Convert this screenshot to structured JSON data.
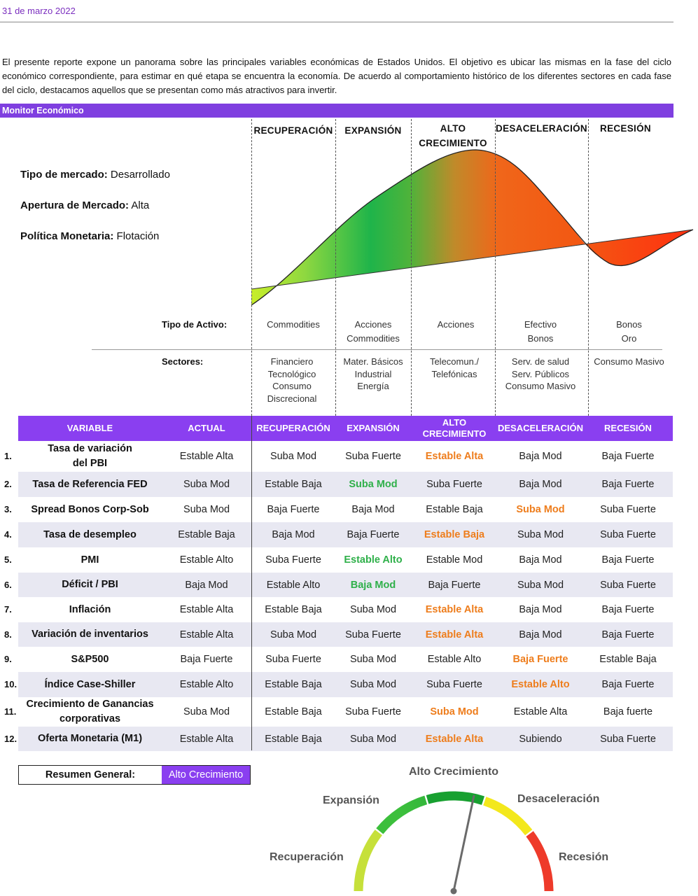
{
  "date": "31 de marzo 2022",
  "intro": "El presente reporte expone un panorama sobre las principales variables económicas de Estados Unidos. El objetivo es ubicar las mismas en la fase del ciclo económico correspondiente, para estimar en qué etapa se encuentra la economía. De acuerdo al comportamiento histórico de los diferentes sectores en cada fase del ciclo, destacamos aquellos que se presentan como más atractivos para invertir.",
  "monitor_title": "Monitor Económico",
  "market_info": [
    {
      "label": "Tipo de mercado:",
      "value": " Desarrollado"
    },
    {
      "label": "Apertura de Mercado:",
      "value": " Alta"
    },
    {
      "label": "Política Monetaria:",
      "value": " Flotación"
    }
  ],
  "phases": {
    "recuperacion": "RECUPERACIÓN",
    "expansion": "EXPANSIÓN",
    "alto_l1": "ALTO",
    "alto_l2": "CRECIMIENTO",
    "desaceleracion": "DESACELERACIÓN",
    "recesion": "RECESIÓN"
  },
  "asset_label": "Tipo de Activo:",
  "assets": {
    "recuperacion": [
      "Commodities"
    ],
    "expansion": [
      "Acciones",
      "Commodities"
    ],
    "alto": [
      "Acciones"
    ],
    "desaceleracion": [
      "Efectivo",
      "Bonos"
    ],
    "recesion": [
      "Bonos",
      "Oro"
    ]
  },
  "sectors_label": "Sectores:",
  "sectors": {
    "recuperacion": [
      "Financiero",
      "Tecnológico",
      "Consumo",
      "Discrecional"
    ],
    "expansion": [
      "Mater. Básicos",
      "Industrial",
      "Energía"
    ],
    "alto": [
      "Telecomun./",
      "Telefónicas"
    ],
    "desaceleracion": [
      "Serv. de salud",
      "Serv. Públicos",
      "Consumo Masivo"
    ],
    "recesion": [
      "Consumo Masivo"
    ]
  },
  "table": {
    "headers": {
      "variable": "VARIABLE",
      "actual": "ACTUAL",
      "recuperacion": "RECUPERACIÓN",
      "expansion": "EXPANSIÓN",
      "alto_l1": "ALTO",
      "alto_l2": "CRECIMIENTO",
      "desaceleracion": "DESACELERACIÓN",
      "recesion": "RECESIÓN"
    },
    "rows": [
      {
        "num": "1.",
        "var": [
          "Tasa de variación",
          "del PBI"
        ],
        "actual": "Estable Alta",
        "rec": "Suba Mod",
        "exp": "Suba Fuerte",
        "alto": "Estable Alta",
        "des": "Baja Mod",
        "res": "Baja Fuerte",
        "hl": "alto",
        "hl_color": "orange"
      },
      {
        "num": "2.",
        "var": [
          "Tasa de Referencia FED"
        ],
        "actual": "Suba Mod",
        "rec": "Estable Baja",
        "exp": "Suba Mod",
        "alto": "Suba Fuerte",
        "des": "Baja Mod",
        "res": "Baja Fuerte",
        "hl": "exp",
        "hl_color": "green"
      },
      {
        "num": "3.",
        "var": [
          "Spread Bonos Corp-Sob"
        ],
        "actual": "Suba Mod",
        "rec": "Baja Fuerte",
        "exp": "Baja Mod",
        "alto": "Estable Baja",
        "des": "Suba Mod",
        "res": "Suba Fuerte",
        "hl": "des",
        "hl_color": "orange"
      },
      {
        "num": "4.",
        "var": [
          "Tasa de desempleo"
        ],
        "actual": "Estable Baja",
        "rec": "Baja Mod",
        "exp": "Baja Fuerte",
        "alto": "Estable Baja",
        "des": "Suba Mod",
        "res": "Suba Fuerte",
        "hl": "alto",
        "hl_color": "orange"
      },
      {
        "num": "5.",
        "var": [
          "PMI"
        ],
        "actual": "Estable Alto",
        "rec": "Suba Fuerte",
        "exp": "Estable Alto",
        "alto": "Estable Mod",
        "des": "Baja Mod",
        "res": "Baja Fuerte",
        "hl": "exp",
        "hl_color": "green"
      },
      {
        "num": "6.",
        "var": [
          "Déficit / PBI"
        ],
        "actual": "Baja Mod",
        "rec": "Estable Alto",
        "exp": "Baja Mod",
        "alto": "Baja Fuerte",
        "des": "Suba Mod",
        "res": "Suba Fuerte",
        "hl": "exp",
        "hl_color": "green"
      },
      {
        "num": "7.",
        "var": [
          "Inflación"
        ],
        "actual": "Estable Alta",
        "rec": "Estable Baja",
        "exp": "Suba Mod",
        "alto": "Estable Alta",
        "des": "Baja Mod",
        "res": "Baja Fuerte",
        "hl": "alto",
        "hl_color": "orange"
      },
      {
        "num": "8.",
        "var": [
          "Variación de inventarios"
        ],
        "actual": "Estable Alta",
        "rec": "Suba Mod",
        "exp": "Suba Fuerte",
        "alto": "Estable Alta",
        "des": "Baja Mod",
        "res": "Baja Fuerte",
        "hl": "alto",
        "hl_color": "orange"
      },
      {
        "num": "9.",
        "var": [
          "S&P500"
        ],
        "actual": "Baja Fuerte",
        "rec": "Suba Fuerte",
        "exp": "Suba Mod",
        "alto": "Estable Alto",
        "des": "Baja Fuerte",
        "res": "Estable Baja",
        "hl": "des",
        "hl_color": "orange"
      },
      {
        "num": "10.",
        "var": [
          "Índice Case-Shiller"
        ],
        "actual": "Estable Alto",
        "rec": "Estable Baja",
        "exp": "Suba Mod",
        "alto": "Suba Fuerte",
        "des": "Estable Alto",
        "res": "Baja Fuerte",
        "hl": "des",
        "hl_color": "orange"
      },
      {
        "num": "11.",
        "var": [
          "Crecimiento de Ganancias",
          "corporativas"
        ],
        "actual": "Suba Mod",
        "rec": "Estable Baja",
        "exp": "Suba Fuerte",
        "alto": "Suba Mod",
        "des": "Estable Alta",
        "res": "Baja fuerte",
        "hl": "alto",
        "hl_color": "orange"
      },
      {
        "num": "12.",
        "var": [
          "Oferta Monetaria (M1)"
        ],
        "actual": "Estable Alta",
        "rec": "Estable Baja",
        "exp": "Suba Mod",
        "alto": "Estable Alta",
        "des": "Subiendo",
        "res": "Suba Fuerte",
        "hl": "alto",
        "hl_color": "orange"
      }
    ]
  },
  "summary": {
    "label": "Resumen General:",
    "value": "Alto Crecimiento"
  },
  "gauge": {
    "labels": {
      "top": "Alto Crecimiento",
      "expansion": "Expansión",
      "desaceleracion": "Desaceleración",
      "recuperacion": "Recuperación",
      "recesion": "Recesión"
    },
    "needle_angle_deg": 12
  },
  "colors": {
    "purple": "#8a3ff0",
    "highlight_orange": "#ee7d1c",
    "highlight_green": "#2fb04a"
  }
}
